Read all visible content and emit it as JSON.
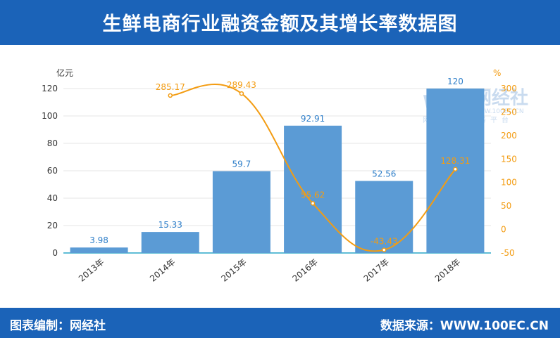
{
  "header": {
    "title": "生鲜电商行业融资金额及其增长率数据图"
  },
  "footer": {
    "left": "图表编制：网经社",
    "right": "数据来源：WWW.100EC.CN"
  },
  "watermark": {
    "logo": "WS",
    "name": "网经社",
    "site": "WWW.100EC.CN",
    "tagline": "网络经济服务平台"
  },
  "colors": {
    "header_bg": "#1b63b8",
    "bar": "#5b9bd5",
    "line": "#f39c12",
    "bar_label": "#2f7fc9"
  },
  "chart_data": {
    "type": "bar",
    "title": "生鲜电商行业融资金额及其增长率数据图",
    "categories": [
      "2013年",
      "2014年",
      "2015年",
      "2016年",
      "2017年",
      "2018年"
    ],
    "y_unit_left": "亿元",
    "y_unit_right": "%",
    "ylim_left": [
      0,
      120
    ],
    "ylim_right": [
      -50,
      300
    ],
    "yticks_left": [
      0,
      20,
      40,
      60,
      80,
      100,
      120
    ],
    "yticks_right": [
      -50,
      0,
      50,
      100,
      150,
      200,
      250,
      300
    ],
    "grid": true,
    "series": [
      {
        "type": "bar",
        "axis": "left",
        "values": [
          3.98,
          15.33,
          59.7,
          92.91,
          52.56,
          120
        ]
      },
      {
        "type": "line",
        "axis": "right",
        "values": [
          null,
          285.17,
          289.43,
          55.62,
          -43.43,
          128.31
        ]
      }
    ]
  }
}
